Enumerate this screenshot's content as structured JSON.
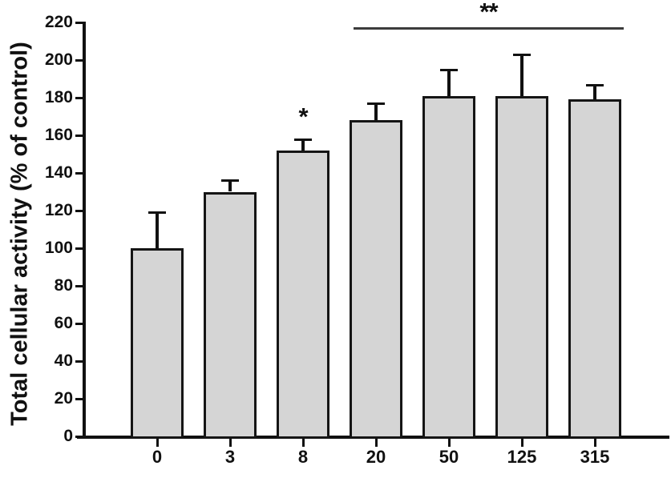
{
  "figure": {
    "background": "#ffffff",
    "text_color": "#111111"
  },
  "chart_data": {
    "type": "bar",
    "title": "",
    "xlabel": "",
    "ylabel": "Total cellular activity (% of control)",
    "categories": [
      "0",
      "3",
      "8",
      "20",
      "50",
      "125",
      "315"
    ],
    "values": [
      100,
      130,
      152,
      168,
      181,
      181,
      179
    ],
    "errors_upper": [
      19,
      6,
      6,
      9,
      14,
      22,
      8
    ],
    "ylim": [
      0,
      220
    ],
    "ytick_step": 20,
    "ytick_labels": [
      "0",
      "20",
      "40",
      "60",
      "80",
      "100",
      "120",
      "140",
      "160",
      "180",
      "200",
      "220"
    ],
    "grid": false,
    "legend": null,
    "bar_fill_color": "#d5d5d5",
    "bar_border_color": "#151515",
    "annotations": [
      {
        "type": "star",
        "text": "*",
        "category": "8"
      },
      {
        "type": "bracket",
        "text": "**",
        "from_category": "20",
        "to_category": "315"
      }
    ]
  }
}
